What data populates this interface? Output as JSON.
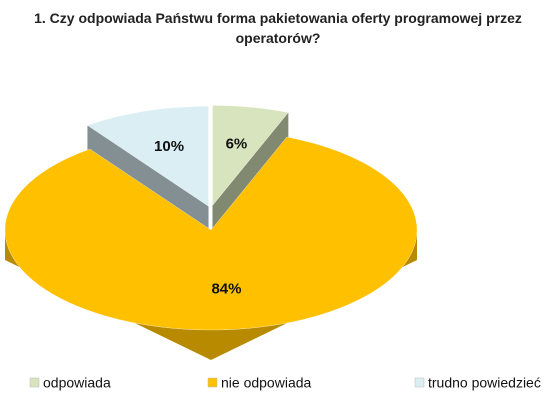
{
  "chart_data": {
    "type": "pie3d",
    "title": "1. Czy odpowiada Państwu forma pakietowania oferty programowej przez operatorów?",
    "categories": [
      "odpowiada",
      "nie odpowiada",
      "trudno powiedzieć"
    ],
    "values": [
      6,
      84,
      10
    ],
    "value_labels": [
      "6%",
      "84%",
      "10%"
    ],
    "colors": [
      "#d7e4bd",
      "#ffc000",
      "#dbeef4"
    ],
    "legend": "bottom"
  }
}
